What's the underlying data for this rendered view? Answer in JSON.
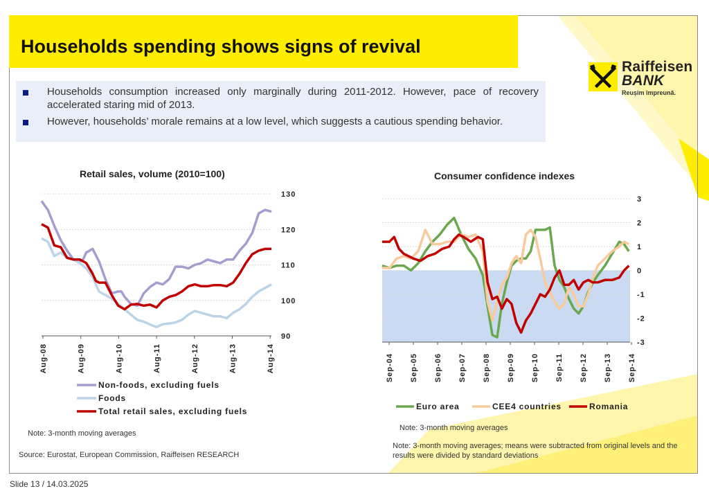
{
  "title": "Households spending shows signs of revival",
  "brand": {
    "name_line1": "Raiffeisen",
    "name_line2": "BANK",
    "tagline": "Reușim împreună.",
    "accent_color": "#ffed00"
  },
  "bullets": [
    "Households consumption increased only marginally during 2011-2012. However, pace of recovery accelerated staring mid of 2013.",
    "However, households’ morale remains at a low level, which suggests a cautious spending behavior."
  ],
  "chart_data": [
    {
      "type": "line",
      "title": "Retail sales, volume (2010=100)",
      "ylim": [
        90,
        130
      ],
      "yticks": [
        "130",
        "120",
        "110",
        "100",
        "90"
      ],
      "tick_labels": [
        "Aug-08",
        "Aug-09",
        "Aug-10",
        "Aug-11",
        "Aug-12",
        "Aug-13",
        "Aug-14"
      ],
      "x_range": [
        0,
        72
      ],
      "grid": true,
      "legend_position": "bottom",
      "series": [
        {
          "name": "Non-foods, excluding fuels",
          "color": "#a79bd0",
          "x": [
            0,
            2,
            4,
            6,
            8,
            10,
            12,
            13,
            14,
            16,
            18,
            20,
            22,
            24,
            25,
            26,
            28,
            30,
            32,
            34,
            36,
            38,
            40,
            42,
            44,
            46,
            48,
            50,
            52,
            54,
            56,
            58,
            60,
            62,
            64,
            66,
            68,
            70,
            72
          ],
          "values": [
            128,
            125.5,
            121,
            117,
            114,
            111.5,
            111,
            111.5,
            113.5,
            114.5,
            111,
            106,
            102,
            102.5,
            102.5,
            101,
            99,
            98.5,
            102,
            103.8,
            105,
            104.5,
            106,
            109.5,
            109.5,
            109,
            110,
            110.5,
            111.5,
            111,
            110.5,
            111.5,
            111.5,
            114,
            116,
            119,
            124.5,
            125.5,
            125
          ]
        },
        {
          "name": "Foods",
          "color": "#bcd3e8",
          "x": [
            0,
            2,
            4,
            6,
            8,
            10,
            12,
            14,
            16,
            18,
            20,
            22,
            24,
            26,
            28,
            30,
            32,
            34,
            36,
            38,
            40,
            42,
            44,
            46,
            48,
            50,
            52,
            54,
            56,
            58,
            60,
            62,
            64,
            66,
            68,
            70,
            72
          ],
          "values": [
            117.5,
            116.5,
            112.5,
            113.5,
            112,
            111.5,
            110.5,
            109,
            106.5,
            102.5,
            101.5,
            100.5,
            99,
            97.5,
            96,
            94.5,
            94,
            93.2,
            92.5,
            93.3,
            93.5,
            93.8,
            94.5,
            96,
            97,
            96.5,
            96,
            95.5,
            95.5,
            95,
            96.5,
            97.5,
            99,
            101,
            102.5,
            103.5,
            104.5
          ]
        },
        {
          "name": "Total retail sales, excluding fuels",
          "color": "#c00000",
          "x": [
            0,
            2,
            3,
            4,
            6,
            8,
            10,
            12,
            14,
            16,
            17,
            18,
            20,
            22,
            24,
            26,
            28,
            30,
            32,
            34,
            36,
            38,
            40,
            42,
            44,
            46,
            48,
            50,
            52,
            54,
            56,
            58,
            60,
            62,
            64,
            66,
            68,
            70,
            72
          ],
          "values": [
            121.5,
            120.5,
            118,
            115.5,
            115,
            112,
            111.5,
            111.5,
            110.5,
            107.5,
            105.5,
            105,
            105,
            101.5,
            98.5,
            97.5,
            98.8,
            99,
            98.5,
            98.8,
            98,
            100,
            101,
            101.5,
            102.5,
            104,
            104.5,
            104,
            104,
            104.3,
            104.3,
            104,
            105,
            107.5,
            110.5,
            113,
            114,
            114.5,
            114.5
          ]
        }
      ]
    },
    {
      "type": "line",
      "title": "Consumer confidence indexes",
      "ylim": [
        -3,
        3
      ],
      "yticks": [
        "3",
        "2",
        "1",
        "0",
        "-1",
        "-2",
        "-3"
      ],
      "tick_labels": [
        "Sep-04",
        "Sep-05",
        "Sep-06",
        "Sep-07",
        "Sep-08",
        "Sep-09",
        "Sep-10",
        "Sep-11",
        "Sep-12",
        "Sep-13",
        "Sep-14"
      ],
      "x_range": [
        0,
        10.35
      ],
      "grid": true,
      "legend_position": "bottom",
      "series": [
        {
          "name": "Euro area",
          "color": "#6aa84f",
          "x": [
            0,
            0.3,
            0.6,
            0.9,
            1.2,
            1.5,
            1.8,
            2.1,
            2.4,
            2.7,
            3.0,
            3.3,
            3.6,
            3.9,
            4.2,
            4.4,
            4.6,
            4.8,
            5.0,
            5.2,
            5.4,
            5.6,
            5.8,
            6.0,
            6.2,
            6.4,
            6.6,
            6.8,
            7.0,
            7.2,
            7.4,
            7.6,
            7.8,
            8.0,
            8.2,
            8.4,
            8.6,
            8.8,
            9.0,
            9.3,
            9.6,
            9.9,
            10.1,
            10.3
          ],
          "values": [
            0.2,
            0.1,
            0.2,
            0.2,
            0.0,
            0.3,
            0.8,
            1.2,
            1.5,
            1.9,
            2.2,
            1.5,
            0.9,
            0.5,
            -0.2,
            -1.5,
            -2.7,
            -2.8,
            -1.4,
            -0.5,
            0.2,
            0.4,
            0.5,
            0.5,
            0.8,
            1.7,
            1.7,
            1.7,
            1.8,
            0.2,
            -0.4,
            -0.7,
            -1.2,
            -1.6,
            -1.8,
            -1.5,
            -0.9,
            -0.5,
            -0.2,
            0.2,
            0.7,
            1.2,
            1.1,
            0.8
          ]
        },
        {
          "name": "CEE4 countries",
          "color": "#f9cb9c",
          "x": [
            0,
            0.3,
            0.6,
            0.9,
            1.2,
            1.5,
            1.8,
            2.1,
            2.4,
            2.7,
            3.0,
            3.3,
            3.6,
            3.9,
            4.2,
            4.4,
            4.6,
            4.8,
            5.0,
            5.2,
            5.4,
            5.6,
            5.8,
            6.0,
            6.2,
            6.4,
            6.6,
            6.8,
            7.0,
            7.2,
            7.4,
            7.6,
            7.8,
            8.0,
            8.2,
            8.4,
            8.6,
            8.8,
            9.0,
            9.3,
            9.6,
            9.9,
            10.1,
            10.3
          ],
          "values": [
            0.1,
            0.1,
            0.5,
            0.6,
            0.5,
            0.8,
            1.7,
            1.1,
            1.1,
            1.2,
            1.2,
            1.5,
            1.4,
            1.5,
            0.8,
            -1.3,
            -2.1,
            -1.3,
            -0.6,
            -0.3,
            0.3,
            0.6,
            0.3,
            1.5,
            1.7,
            1.4,
            0.5,
            -0.5,
            -0.9,
            -1.3,
            -1.6,
            -1.4,
            -0.7,
            -1.0,
            -1.5,
            -1.5,
            -1.0,
            -0.3,
            0.2,
            0.5,
            0.8,
            1.0,
            1.2,
            1.1
          ]
        },
        {
          "name": "Romania",
          "color": "#c00000",
          "x": [
            0,
            0.3,
            0.5,
            0.7,
            0.9,
            1.1,
            1.3,
            1.6,
            1.9,
            2.2,
            2.5,
            2.8,
            3.0,
            3.2,
            3.4,
            3.7,
            4.0,
            4.2,
            4.4,
            4.6,
            4.8,
            5.0,
            5.2,
            5.4,
            5.6,
            5.8,
            6.0,
            6.2,
            6.4,
            6.6,
            6.8,
            7.0,
            7.2,
            7.4,
            7.6,
            7.8,
            8.0,
            8.2,
            8.4,
            8.6,
            8.8,
            9.0,
            9.3,
            9.6,
            9.9,
            10.1,
            10.3
          ],
          "values": [
            1.2,
            1.2,
            1.4,
            0.9,
            0.7,
            0.6,
            0.5,
            0.4,
            0.6,
            0.7,
            0.9,
            1.0,
            1.3,
            1.5,
            1.4,
            1.2,
            1.4,
            1.3,
            -0.5,
            -1.2,
            -1.1,
            -1.6,
            -1.2,
            -1.4,
            -2.2,
            -2.6,
            -2.1,
            -1.8,
            -1.4,
            -1.0,
            -1.1,
            -0.8,
            -0.3,
            0.0,
            -0.6,
            -0.6,
            -0.4,
            -0.8,
            -0.5,
            -0.4,
            -0.5,
            -0.5,
            -0.4,
            -0.4,
            -0.3,
            0.0,
            0.2
          ]
        }
      ]
    }
  ],
  "notes": {
    "left": "Note: 3-month moving averages",
    "right_1": "Note: 3-month moving averages",
    "right_2": "Note:  3-month moving averages; means were subtracted from original levels and the results were divided by standard deviations"
  },
  "source": "Source: Eurostat, European Commission, Raiffeisen RESEARCH",
  "footer": "Slide 13 / 14.03.2025"
}
